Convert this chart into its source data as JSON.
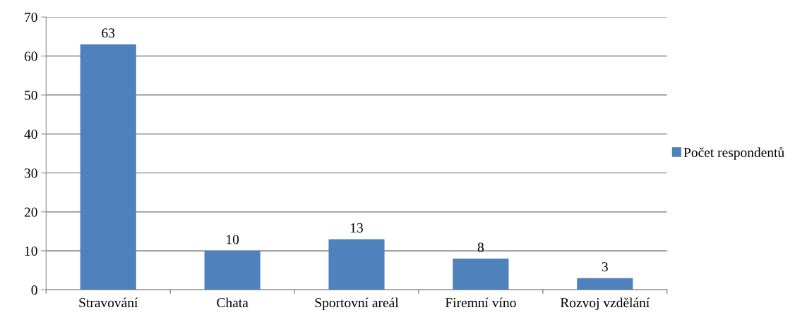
{
  "chart_data": {
    "type": "bar",
    "categories": [
      "Stravování",
      "Chata",
      "Sportovní areál",
      "Firemní víno",
      "Rozvoj vzdělání"
    ],
    "series": [
      {
        "name": "Počet respondentů",
        "color": "#4f81bd",
        "values": [
          63,
          10,
          13,
          8,
          3
        ]
      }
    ],
    "ylim": [
      0,
      70
    ],
    "yticks": [
      0,
      10,
      20,
      30,
      40,
      50,
      60,
      70
    ],
    "grid": "y",
    "legend": "right",
    "data_labels": true
  }
}
